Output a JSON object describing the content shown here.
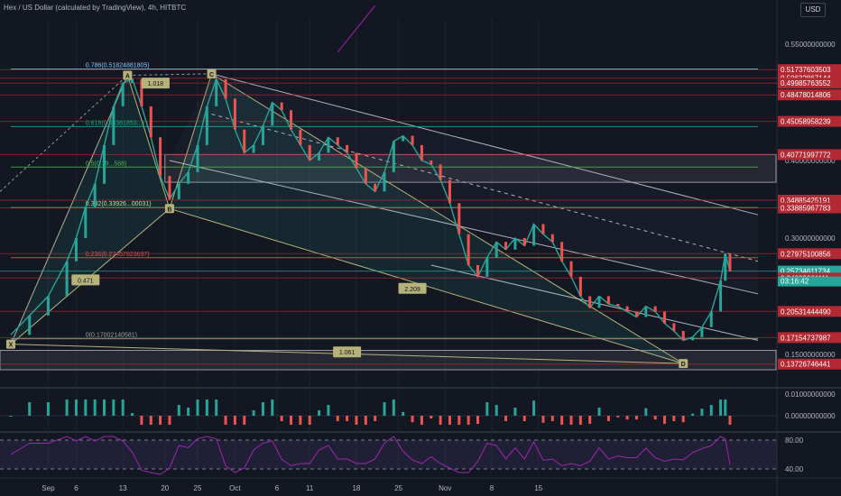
{
  "header": {
    "title": "Hex / US Dollar (calculated by TradingView), 4h, HITBTC"
  },
  "currency": "USD",
  "countdown": "03:16:42",
  "chart_data": {
    "type": "line",
    "title": "Hex / US Dollar (calculated by TradingView), 4h, HITBTC",
    "series": [
      {
        "points": [
          [
            0,
            0.175
          ],
          [
            4,
            0.2
          ],
          [
            8,
            0.225
          ],
          [
            12,
            0.27
          ],
          [
            14,
            0.3
          ],
          [
            16,
            0.34
          ],
          [
            18,
            0.37
          ],
          [
            20,
            0.42
          ],
          [
            22,
            0.47
          ],
          [
            24,
            0.5
          ],
          [
            26,
            0.505
          ],
          [
            28,
            0.47
          ],
          [
            30,
            0.43
          ],
          [
            32,
            0.38
          ],
          [
            34,
            0.35
          ],
          [
            36,
            0.37
          ],
          [
            38,
            0.385
          ],
          [
            40,
            0.42
          ],
          [
            42,
            0.47
          ],
          [
            44,
            0.505
          ],
          [
            46,
            0.48
          ],
          [
            48,
            0.44
          ],
          [
            50,
            0.41
          ],
          [
            52,
            0.42
          ],
          [
            54,
            0.445
          ],
          [
            56,
            0.475
          ],
          [
            58,
            0.465
          ],
          [
            60,
            0.44
          ],
          [
            62,
            0.42
          ],
          [
            64,
            0.4
          ],
          [
            66,
            0.41
          ],
          [
            68,
            0.43
          ],
          [
            70,
            0.42
          ],
          [
            72,
            0.41
          ],
          [
            74,
            0.39
          ],
          [
            76,
            0.37
          ],
          [
            78,
            0.36
          ],
          [
            80,
            0.385
          ],
          [
            82,
            0.425
          ],
          [
            84,
            0.432
          ],
          [
            86,
            0.42
          ],
          [
            88,
            0.4
          ],
          [
            90,
            0.395
          ],
          [
            92,
            0.375
          ],
          [
            94,
            0.345
          ],
          [
            96,
            0.305
          ],
          [
            98,
            0.265
          ],
          [
            100,
            0.25
          ],
          [
            102,
            0.275
          ],
          [
            104,
            0.295
          ],
          [
            106,
            0.285
          ],
          [
            108,
            0.3
          ],
          [
            110,
            0.29
          ],
          [
            112,
            0.318
          ],
          [
            114,
            0.305
          ],
          [
            116,
            0.295
          ],
          [
            118,
            0.27
          ],
          [
            120,
            0.25
          ],
          [
            122,
            0.225
          ],
          [
            124,
            0.21
          ],
          [
            126,
            0.225
          ],
          [
            128,
            0.215
          ],
          [
            130,
            0.212
          ],
          [
            132,
            0.205
          ],
          [
            134,
            0.198
          ],
          [
            136,
            0.212
          ],
          [
            138,
            0.205
          ],
          [
            140,
            0.19
          ],
          [
            142,
            0.18
          ],
          [
            144,
            0.168
          ],
          [
            146,
            0.172
          ],
          [
            148,
            0.185
          ],
          [
            150,
            0.205
          ],
          [
            152,
            0.245
          ],
          [
            153,
            0.28
          ],
          [
            154,
            0.257
          ]
        ],
        "color": "#26a69a"
      }
    ],
    "x_ticks": [
      {
        "label": "Sep",
        "x": 8
      },
      {
        "label": "6",
        "x": 14
      },
      {
        "label": "13",
        "x": 24
      },
      {
        "label": "20",
        "x": 33
      },
      {
        "label": "25",
        "x": 40
      },
      {
        "label": "Oct",
        "x": 48
      },
      {
        "label": "6",
        "x": 57
      },
      {
        "label": "11",
        "x": 64
      },
      {
        "label": "18",
        "x": 74
      },
      {
        "label": "25",
        "x": 83
      },
      {
        "label": "Nov",
        "x": 93
      },
      {
        "label": "8",
        "x": 103
      },
      {
        "label": "15",
        "x": 113
      }
    ],
    "ylim": [
      0.13,
      0.57
    ],
    "y_ticks": [
      "0.55000000000",
      "0.40000000000",
      "0.30000000000",
      "0.15000000000"
    ],
    "price_levels": [
      {
        "label": "0.51737603503",
        "value": 0.5174,
        "color": "#b22833"
      },
      {
        "label": "0.50632867144",
        "value": 0.5063,
        "color": "#b22833"
      },
      {
        "label": "0.49985763552",
        "value": 0.4999,
        "color": "#b22833"
      },
      {
        "label": "0.48478014806",
        "value": 0.4848,
        "color": "#b22833"
      },
      {
        "label": "0.45058958239",
        "value": 0.4506,
        "color": "#b22833"
      },
      {
        "label": "0.40771997772",
        "value": 0.4077,
        "color": "#b22833"
      },
      {
        "label": "0.34885425191",
        "value": 0.3489,
        "color": "#b22833"
      },
      {
        "label": "0.33885967783",
        "value": 0.3389,
        "color": "#b22833"
      },
      {
        "label": "0.27975100856",
        "value": 0.2798,
        "color": "#b22833"
      },
      {
        "label": "0.25734611734",
        "value": 0.2573,
        "color": "#26a69a"
      },
      {
        "label": "0.24839861111",
        "value": 0.2484,
        "color": "#b22833"
      },
      {
        "label": "0.20531444490",
        "value": 0.2053,
        "color": "#b22833"
      },
      {
        "label": "0.17154737987",
        "value": 0.1715,
        "color": "#b22833"
      },
      {
        "label": "0.13726746441",
        "value": 0.1373,
        "color": "#b22833"
      }
    ],
    "fib_levels": [
      {
        "label": "0.786(0.51824881805)",
        "value": 0.5182,
        "color": "#90caf9"
      },
      {
        "label": "0.618(0.44381853...)",
        "value": 0.4438,
        "color": "#26a69a"
      },
      {
        "label": "0.5(0.39...588)",
        "value": 0.3916,
        "color": "#4caf50"
      },
      {
        "label": "0.382(0.33926...00031)",
        "value": 0.3393,
        "color": "#c5e1a5"
      },
      {
        "label": "0.236(0.27457823697)",
        "value": 0.2746,
        "color": "#ef5350"
      },
      {
        "label": "0(0.17002140581)",
        "value": 0.17,
        "color": "#9e9e9e"
      }
    ],
    "pattern_points": [
      {
        "label": "X",
        "x": 0,
        "y": 0.163
      },
      {
        "label": "A",
        "x": 25,
        "y": 0.51
      },
      {
        "label": "B",
        "x": 34,
        "y": 0.338
      },
      {
        "label": "C",
        "x": 43,
        "y": 0.512
      },
      {
        "label": "D",
        "x": 144,
        "y": 0.138
      }
    ],
    "ratio_labels": [
      {
        "label": "1.018",
        "x": 31,
        "y": 0.5
      },
      {
        "label": "0.471",
        "x": 16,
        "y": 0.246
      },
      {
        "label": "2.209",
        "x": 86,
        "y": 0.235
      },
      {
        "label": "1.061",
        "x": 72,
        "y": 0.153
      }
    ],
    "macd_ticks": [
      "0.01000000000",
      "0.00000000000"
    ],
    "rsi_ticks": [
      "80.00",
      "40.00"
    ]
  }
}
